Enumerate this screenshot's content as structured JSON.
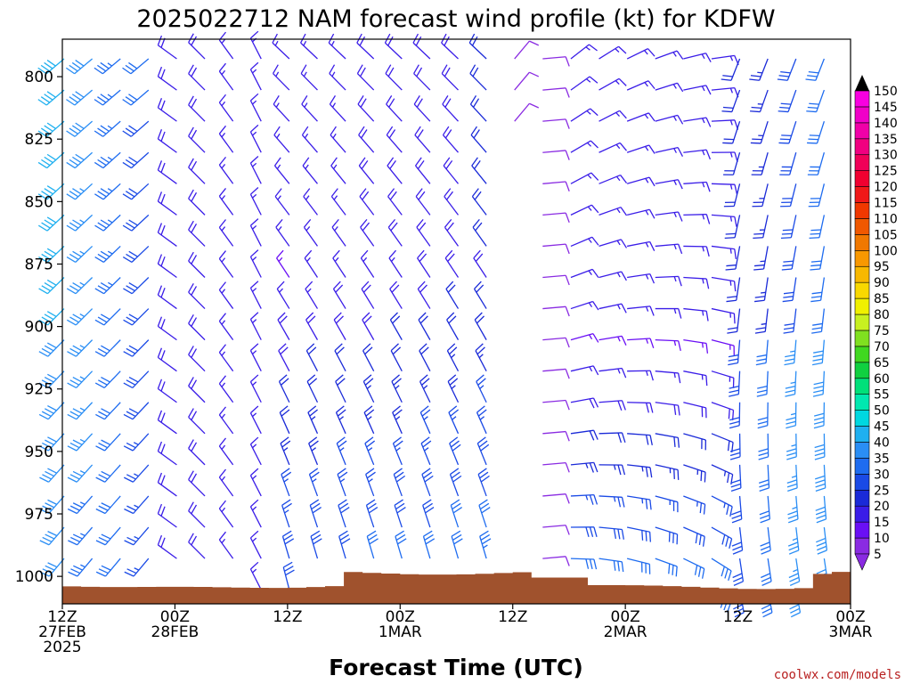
{
  "chart_data": {
    "type": "wind_barb_time_height",
    "title": "2025022712 NAM forecast wind profile (kt) for KDFW",
    "xlabel": "Forecast Time (UTC)",
    "ylabel": "",
    "y_axis": {
      "units": "hPa",
      "range": [
        1011,
        785
      ],
      "ticks": [
        800,
        825,
        850,
        875,
        900,
        925,
        950,
        975,
        1000
      ]
    },
    "x_axis": {
      "range_hours": [
        0,
        84
      ],
      "ticks": [
        {
          "hour": 0,
          "line1": "12Z",
          "line2": "27FEB",
          "line3": "2025"
        },
        {
          "hour": 12,
          "line1": "00Z",
          "line2": "28FEB",
          "line3": ""
        },
        {
          "hour": 24,
          "line1": "12Z",
          "line2": "",
          "line3": ""
        },
        {
          "hour": 36,
          "line1": "00Z",
          "line2": "1MAR",
          "line3": ""
        },
        {
          "hour": 48,
          "line1": "12Z",
          "line2": "",
          "line3": ""
        },
        {
          "hour": 60,
          "line1": "00Z",
          "line2": "2MAR",
          "line3": ""
        },
        {
          "hour": 72,
          "line1": "12Z",
          "line2": "",
          "line3": ""
        },
        {
          "hour": 84,
          "line1": "00Z",
          "line2": "3MAR",
          "line3": ""
        }
      ]
    },
    "colorbar": {
      "units": "kt",
      "levels": [
        5,
        10,
        15,
        20,
        25,
        30,
        35,
        40,
        45,
        50,
        55,
        60,
        65,
        70,
        75,
        80,
        85,
        90,
        95,
        100,
        105,
        110,
        115,
        120,
        125,
        130,
        135,
        140,
        145,
        150
      ],
      "colors": [
        "#8a2be2",
        "#6a0ff5",
        "#3a1de8",
        "#1a2ad8",
        "#1a4ae6",
        "#1e6cf0",
        "#2a8ef5",
        "#1fb0f0",
        "#00d8e0",
        "#00e8b0",
        "#00e07a",
        "#10d040",
        "#40d820",
        "#80e020",
        "#c8f020",
        "#f0f000",
        "#f8d800",
        "#f8b800",
        "#f89800",
        "#f07800",
        "#f05800",
        "#f03800",
        "#f01818",
        "#f00030",
        "#f00058",
        "#f00080",
        "#f000a8",
        "#f000c8",
        "#f800e0"
      ]
    },
    "terrain": {
      "color": "#a0522d"
    },
    "wind": {
      "representation": "gridded barbs, every 3 h, every 12.5 hPa"
    },
    "credit": "coolwx.com/models",
    "credit_color": "#b82020"
  }
}
